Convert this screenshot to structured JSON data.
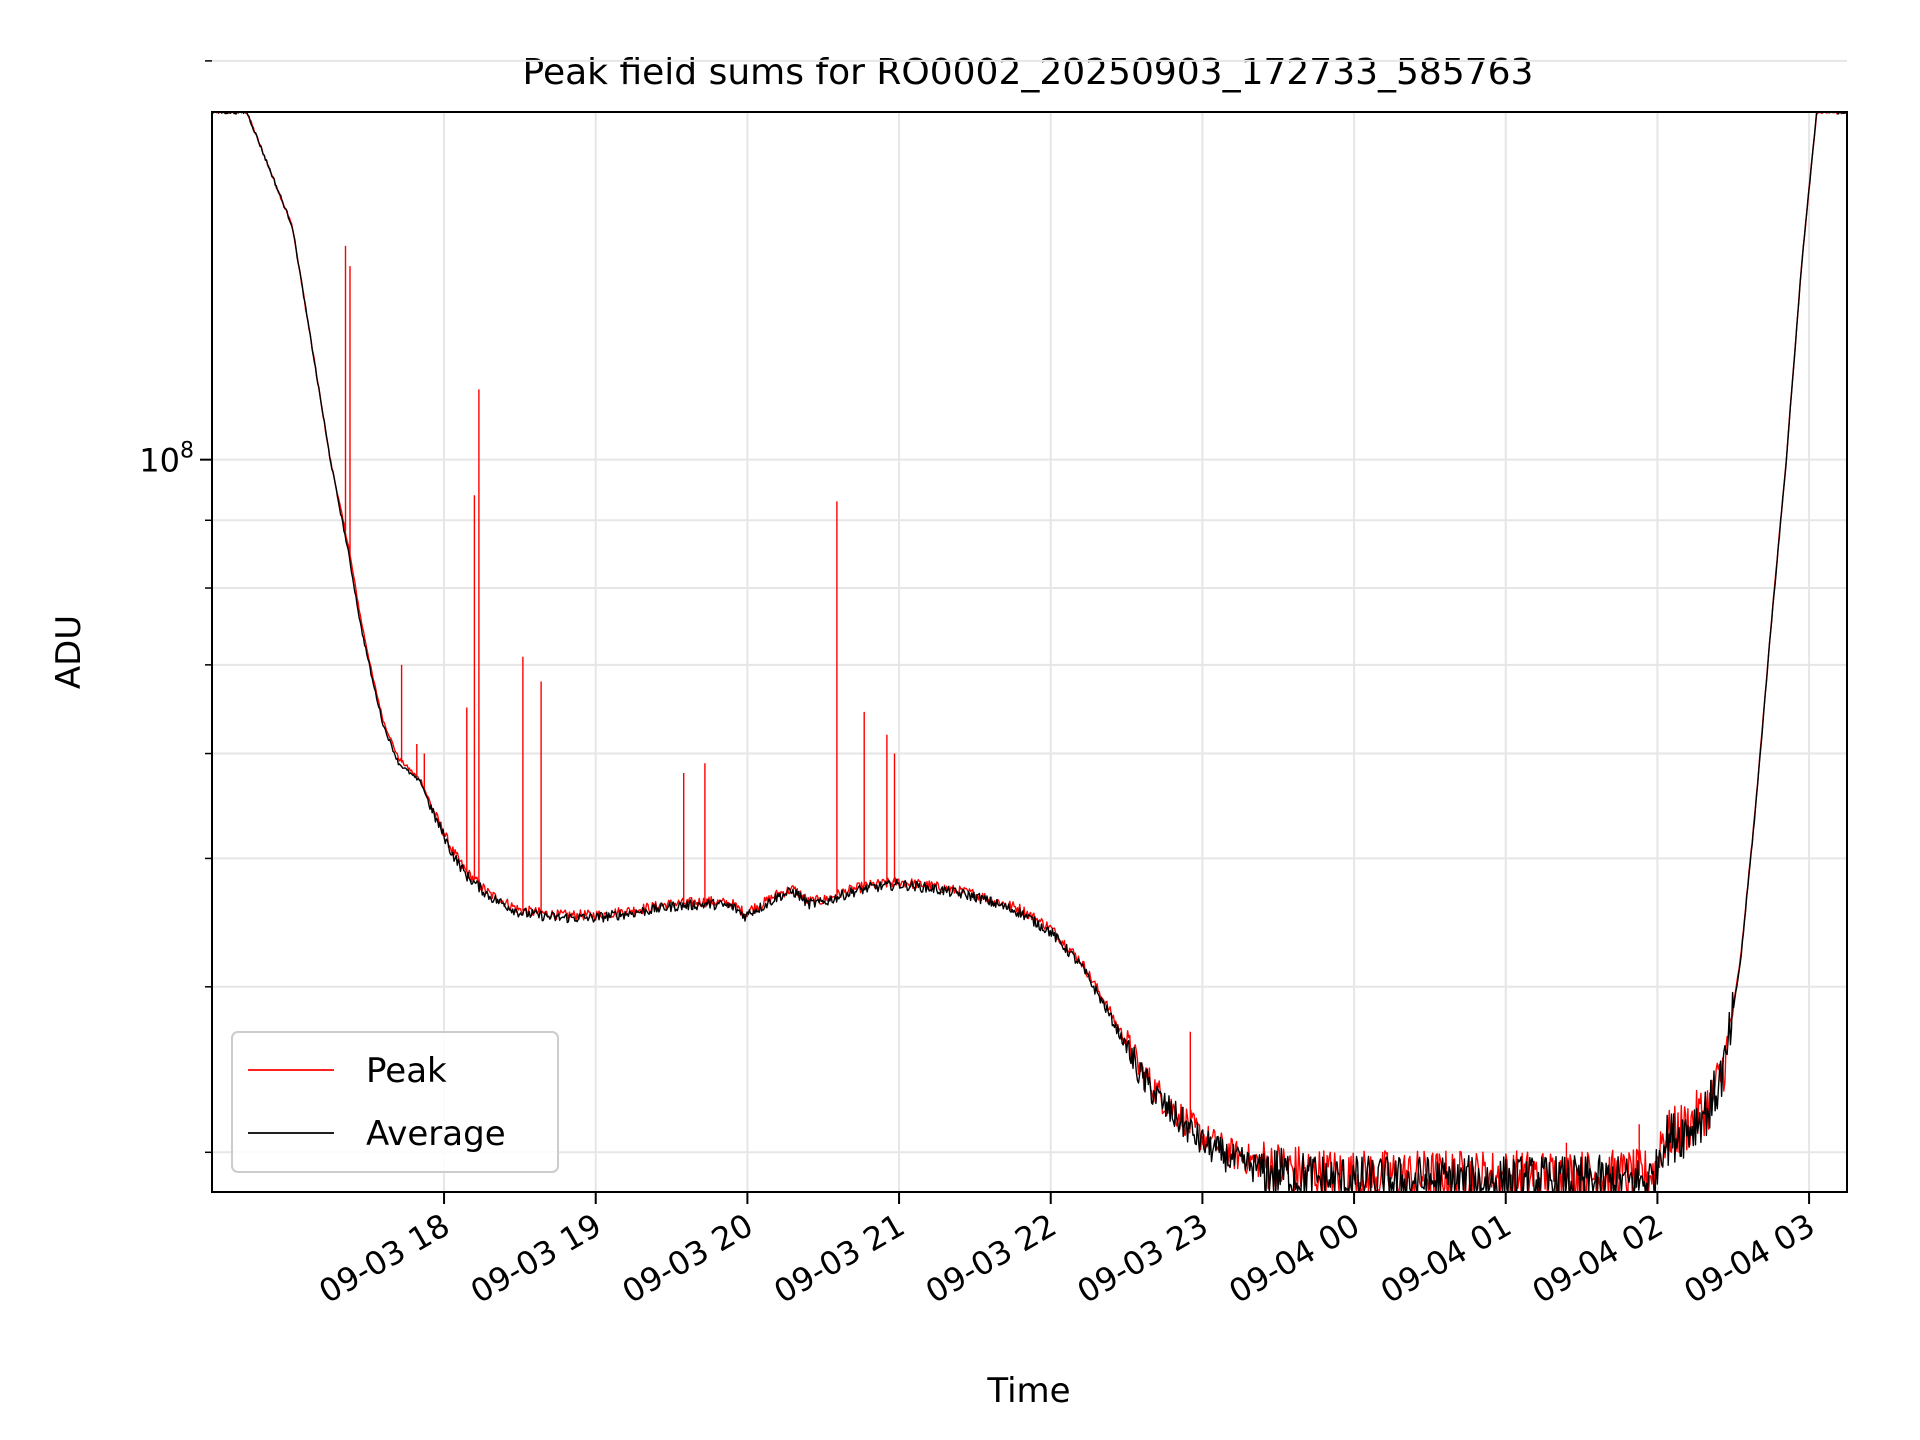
{
  "colors": {
    "peak": "#ff0000",
    "average": "#000000",
    "grid": "#e6e6e6",
    "axis": "#000000",
    "legend_border": "#cccccc"
  },
  "chart_data": {
    "type": "line",
    "title": "Peak field sums for RO0002_20250903_172733_585763",
    "xlabel": "Time",
    "ylabel": "ADU",
    "x_units": "hours since 2025-09-03 17:00",
    "xlim": [
      16.47,
      27.25
    ],
    "ylim": [
      28000000.0,
      183000000.0
    ],
    "yscale": "log",
    "grid": true,
    "legend_position": "lower-left",
    "x_ticks": [
      {
        "value": 18,
        "label": "09-03 18"
      },
      {
        "value": 19,
        "label": "09-03 19"
      },
      {
        "value": 20,
        "label": "09-03 20"
      },
      {
        "value": 21,
        "label": "09-03 21"
      },
      {
        "value": 22,
        "label": "09-03 22"
      },
      {
        "value": 23,
        "label": "09-03 23"
      },
      {
        "value": 24,
        "label": "09-04 00"
      },
      {
        "value": 25,
        "label": "09-04 01"
      },
      {
        "value": 26,
        "label": "09-04 02"
      },
      {
        "value": 27,
        "label": "09-04 03"
      }
    ],
    "y_ticks": [
      {
        "value": 100000000.0,
        "label_base": "10",
        "label_exp": "8"
      }
    ],
    "y_minor_ticks": [
      30000000.0,
      40000000.0,
      50000000.0,
      60000000.0,
      70000000.0,
      80000000.0,
      90000000.0,
      200000000.0
    ],
    "series": [
      {
        "name": "Average",
        "x": [
          16.47,
          16.7,
          17.0,
          17.25,
          17.37,
          17.45,
          17.53,
          17.6,
          17.7,
          17.85,
          17.93,
          18.0,
          18.05,
          18.15,
          18.3,
          18.5,
          18.75,
          19.0,
          19.25,
          19.5,
          19.75,
          19.9,
          19.99,
          20.01,
          20.1,
          20.2,
          20.3,
          20.35,
          20.4,
          20.5,
          20.6,
          20.7,
          20.8,
          21.0,
          21.2,
          21.5,
          21.8,
          22.0,
          22.2,
          22.35,
          22.5,
          22.6,
          22.75,
          22.9,
          23.0,
          23.2,
          23.4,
          23.6,
          23.8,
          24.0,
          24.3,
          24.6,
          25.0,
          25.3,
          25.6,
          25.9,
          25.99,
          26.02,
          26.2,
          26.35,
          26.45,
          26.55,
          26.65,
          26.75,
          26.85,
          26.95,
          27.05,
          27.25
        ],
        "values": [
          183000000.0,
          183000000.0,
          150000000.0,
          100000000.0,
          85000000.0,
          75000000.0,
          68000000.0,
          63000000.0,
          59000000.0,
          57000000.0,
          54000000.0,
          52000000.0,
          50500000.0,
          48500000.0,
          46800000.0,
          45500000.0,
          45100000.0,
          45100000.0,
          45500000.0,
          46000000.0,
          46200000.0,
          46000000.0,
          45200000.0,
          45500000.0,
          46000000.0,
          46800000.0,
          47200000.0,
          46800000.0,
          46200000.0,
          46300000.0,
          46800000.0,
          47200000.0,
          47500000.0,
          47800000.0,
          47500000.0,
          46800000.0,
          45500000.0,
          44000000.0,
          41500000.0,
          38800000.0,
          36000000.0,
          34200000.0,
          32500000.0,
          31300000.0,
          30500000.0,
          29600000.0,
          29100000.0,
          28800000.0,
          28600000.0,
          28500000.0,
          28500000.0,
          28500000.0,
          28500000.0,
          28500000.0,
          28500000.0,
          28500000.0,
          28700000.0,
          30500000.0,
          31200000.0,
          32500000.0,
          35000000.0,
          42000000.0,
          55000000.0,
          75000000.0,
          100000000.0,
          140000000.0,
          183000000.0,
          183000000.0
        ]
      },
      {
        "name": "Peak",
        "x": [
          16.47,
          16.7,
          17.0,
          17.25,
          17.37,
          17.45,
          17.53,
          17.6,
          17.7,
          17.85,
          17.93,
          18.0,
          18.05,
          18.15,
          18.3,
          18.5,
          18.75,
          19.0,
          19.25,
          19.5,
          19.75,
          19.9,
          19.99,
          20.01,
          20.1,
          20.2,
          20.3,
          20.35,
          20.4,
          20.5,
          20.6,
          20.7,
          20.8,
          21.0,
          21.2,
          21.5,
          21.8,
          22.0,
          22.2,
          22.35,
          22.5,
          22.6,
          22.75,
          22.9,
          23.0,
          23.2,
          23.4,
          23.6,
          23.8,
          24.0,
          24.3,
          24.6,
          25.0,
          25.3,
          25.6,
          25.9,
          25.99,
          26.02,
          26.2,
          26.35,
          26.45,
          26.55,
          26.65,
          26.75,
          26.85,
          26.95,
          27.05,
          27.25
        ],
        "values": [
          183000000.0,
          183000000.0,
          150000000.0,
          100000000.0,
          86000000.0,
          76000000.0,
          68500000.0,
          63500000.0,
          59500000.0,
          57200000.0,
          54300000.0,
          52300000.0,
          50800000.0,
          48800000.0,
          47000000.0,
          45700000.0,
          45300000.0,
          45300000.0,
          45700000.0,
          46200000.0,
          46400000.0,
          46200000.0,
          45400000.0,
          45700000.0,
          46200000.0,
          47000000.0,
          47400000.0,
          47000000.0,
          46400000.0,
          46500000.0,
          47000000.0,
          47400000.0,
          47700000.0,
          48000000.0,
          47700000.0,
          47000000.0,
          45800000.0,
          44300000.0,
          41800000.0,
          39100000.0,
          36300000.0,
          34500000.0,
          32800000.0,
          31600000.0,
          30800000.0,
          29900000.0,
          29400000.0,
          29100000.0,
          28900000.0,
          28800000.0,
          28800000.0,
          28800000.0,
          28800000.0,
          28800000.0,
          28800000.0,
          28800000.0,
          29000000.0,
          30700000.0,
          31400000.0,
          32700000.0,
          35200000.0,
          42200000.0,
          55200000.0,
          75200000.0,
          100000000.0,
          140000000.0,
          183000000.0,
          183000000.0
        ],
        "spikes": [
          {
            "x": 17.35,
            "value": 145000000.0
          },
          {
            "x": 17.38,
            "value": 140000000.0
          },
          {
            "x": 17.72,
            "value": 70000000.0
          },
          {
            "x": 17.82,
            "value": 61000000.0
          },
          {
            "x": 17.87,
            "value": 60000000.0
          },
          {
            "x": 18.15,
            "value": 65000000.0
          },
          {
            "x": 18.2,
            "value": 94000000.0
          },
          {
            "x": 18.23,
            "value": 113000000.0
          },
          {
            "x": 18.52,
            "value": 71000000.0
          },
          {
            "x": 18.64,
            "value": 68000000.0
          },
          {
            "x": 19.58,
            "value": 58000000.0
          },
          {
            "x": 19.72,
            "value": 59000000.0
          },
          {
            "x": 20.59,
            "value": 93000000.0
          },
          {
            "x": 20.77,
            "value": 64500000.0
          },
          {
            "x": 20.92,
            "value": 62000000.0
          },
          {
            "x": 20.97,
            "value": 60000000.0
          },
          {
            "x": 22.92,
            "value": 37000000.0
          },
          {
            "x": 24.22,
            "value": 30000000.0
          },
          {
            "x": 25.4,
            "value": 30500000.0
          },
          {
            "x": 25.88,
            "value": 31500000.0
          }
        ]
      }
    ]
  }
}
